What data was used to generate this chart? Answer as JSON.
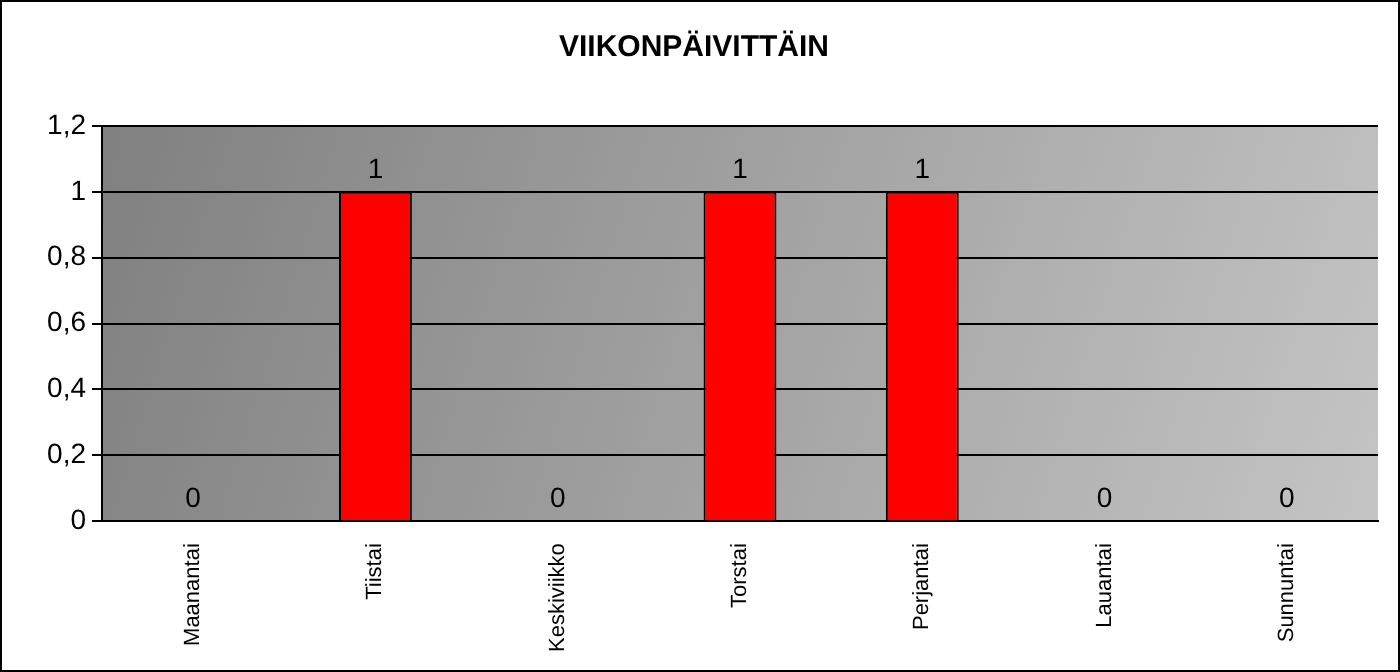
{
  "chart_data": {
    "type": "bar",
    "title": "VIIKONPÄIVITTÄIN",
    "categories": [
      "Maanantai",
      "Tiistai",
      "Keskiviikko",
      "Torstai",
      "Perjantai",
      "Lauantai",
      "Sunnuntai"
    ],
    "values": [
      0,
      1,
      0,
      1,
      1,
      0,
      0
    ],
    "color": "#ff0000",
    "ylim": [
      0,
      1.2
    ],
    "yticks": [
      0,
      {
        "value": 0.2,
        "label": "0,2"
      },
      {
        "value": 0.4,
        "label": "0,4"
      },
      {
        "value": 0.6,
        "label": "0,6"
      },
      {
        "value": 0.8,
        "label": "0,8"
      },
      1,
      {
        "value": 1.2,
        "label": "1,2"
      }
    ],
    "grid": "y",
    "legend": false,
    "data_labels": true
  }
}
